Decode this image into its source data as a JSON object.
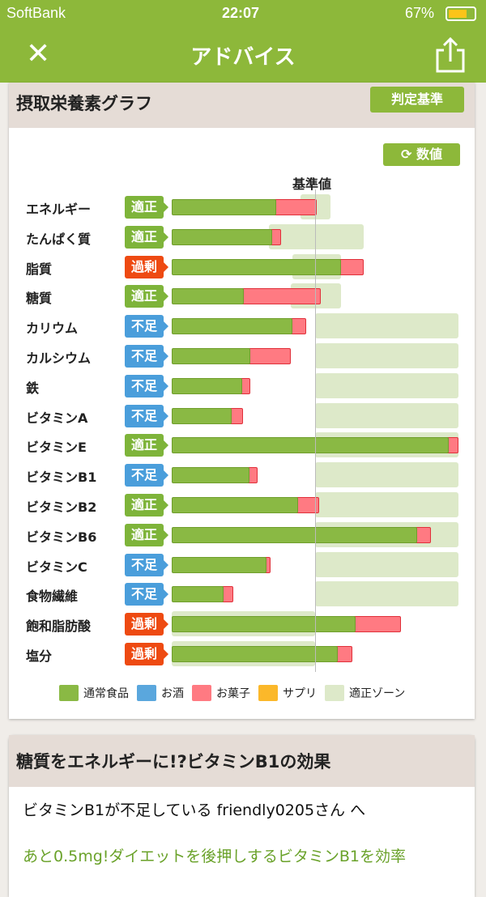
{
  "status": {
    "carrier": "SoftBank",
    "time": "22:07",
    "battery": "67%"
  },
  "nav": {
    "title": "アドバイス"
  },
  "graph": {
    "title": "摂取栄養素グラフ",
    "judge_button": "判定基準",
    "number_button": "数値",
    "reference_label": "基準値"
  },
  "colors": {
    "food": "#8ab944",
    "alcohol": "#5aa7dd",
    "snack": "#ff7a82",
    "supplement": "#fbb82a",
    "zone": "#dde9c9",
    "ok": "#7eb43a",
    "over": "#ee4a12",
    "short": "#4a9edb"
  },
  "chart_data": {
    "type": "bar",
    "unit": "% of reference value",
    "xlim": [
      0,
      200
    ],
    "rows": [
      {
        "name": "エネルギー",
        "status": "適正",
        "food": 73,
        "snack": 28,
        "zone": [
          90,
          111
        ]
      },
      {
        "name": "たんぱく質",
        "status": "適正",
        "food": 70,
        "snack": 6,
        "zone": [
          68,
          134
        ]
      },
      {
        "name": "脂質",
        "status": "過剰",
        "food": 118,
        "snack": 16,
        "zone": [
          84,
          118
        ]
      },
      {
        "name": "糖質",
        "status": "適正",
        "food": 50,
        "snack": 54,
        "zone": [
          83,
          118
        ]
      },
      {
        "name": "カリウム",
        "status": "不足",
        "food": 84,
        "snack": 10,
        "zone": [
          100,
          200
        ]
      },
      {
        "name": "カルシウム",
        "status": "不足",
        "food": 55,
        "snack": 28,
        "zone": [
          100,
          200
        ]
      },
      {
        "name": "鉄",
        "status": "不足",
        "food": 49,
        "snack": 6,
        "zone": [
          100,
          200
        ]
      },
      {
        "name": "ビタミンA",
        "status": "不足",
        "food": 42,
        "snack": 8,
        "zone": [
          100,
          200
        ]
      },
      {
        "name": "ビタミンE",
        "status": "適正",
        "food": 193,
        "snack": 7,
        "zone": [
          100,
          200
        ]
      },
      {
        "name": "ビタミンB1",
        "status": "不足",
        "food": 54,
        "snack": 6,
        "zone": [
          100,
          200
        ]
      },
      {
        "name": "ビタミンB2",
        "status": "適正",
        "food": 88,
        "snack": 15,
        "zone": [
          100,
          200
        ]
      },
      {
        "name": "ビタミンB6",
        "status": "適正",
        "food": 171,
        "snack": 10,
        "zone": [
          100,
          200
        ]
      },
      {
        "name": "ビタミンC",
        "status": "不足",
        "food": 66,
        "snack": 3,
        "zone": [
          100,
          200
        ]
      },
      {
        "name": "食物繊維",
        "status": "不足",
        "food": 36,
        "snack": 7,
        "zone": [
          100,
          200
        ]
      },
      {
        "name": "飽和脂肪酸",
        "status": "過剰",
        "food": 128,
        "snack": 32,
        "zone": [
          0,
          100
        ]
      },
      {
        "name": "塩分",
        "status": "過剰",
        "food": 116,
        "snack": 10,
        "zone": [
          0,
          100
        ]
      }
    ],
    "legend": [
      "通常食品",
      "お酒",
      "お菓子",
      "サプリ",
      "適正ゾーン"
    ]
  },
  "article": {
    "title": "糖質をエネルギーに!?ビタミンB1の効果",
    "greeting": "ビタミンB1が不足している friendly0205さん へ",
    "lead": "あと0.5mg!ダイエットを後押しするビタミンB1を効率"
  }
}
